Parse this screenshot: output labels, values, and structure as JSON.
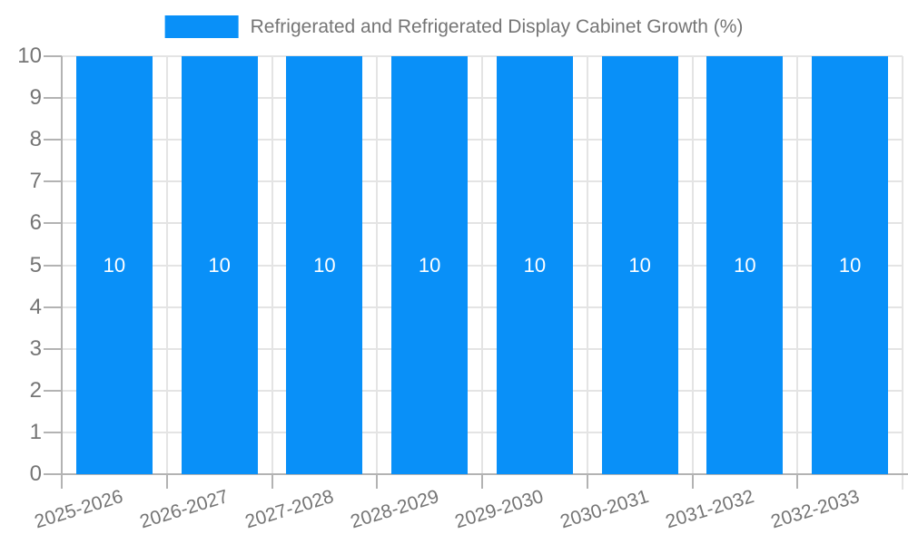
{
  "legend": {
    "label": "Refrigerated and Refrigerated Display Cabinet Growth (%)"
  },
  "chart_data": {
    "type": "bar",
    "title": "",
    "xlabel": "",
    "ylabel": "",
    "categories": [
      "2025-2026",
      "2026-2027",
      "2027-2028",
      "2028-2029",
      "2029-2030",
      "2030-2031",
      "2031-2032",
      "2032-2033"
    ],
    "series": [
      {
        "name": "Refrigerated and Refrigerated Display Cabinet Growth (%)",
        "values": [
          10,
          10,
          10,
          10,
          10,
          10,
          10,
          10
        ]
      }
    ],
    "bar_labels": [
      "10",
      "10",
      "10",
      "10",
      "10",
      "10",
      "10",
      "10"
    ],
    "ylim": [
      0,
      10
    ],
    "y_ticks": [
      0,
      1,
      2,
      3,
      4,
      5,
      6,
      7,
      8,
      9,
      10
    ],
    "grid": true,
    "legend_position": "top"
  },
  "colors": {
    "bar": "#0990f8",
    "bar_label": "#ffffff",
    "grid": "#e4e4e4",
    "axis": "#b3b3b3",
    "text": "#757575",
    "background": "#ffffff"
  }
}
